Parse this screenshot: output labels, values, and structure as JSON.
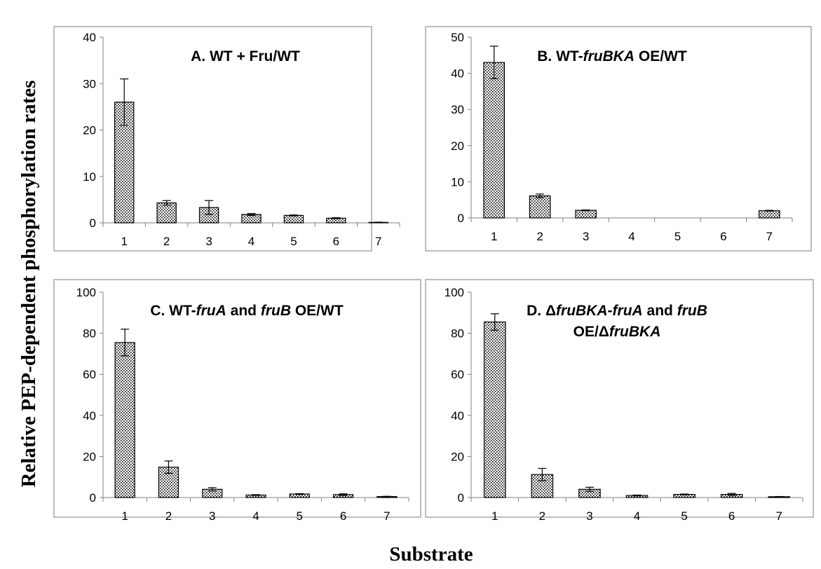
{
  "figure": {
    "ylabel": "Relative PEP-dependent phosphorylation rates",
    "xlabel": "Substrate"
  },
  "chart_data": [
    {
      "type": "bar",
      "title": "A. WT + Fru/WT",
      "title_parts": [
        {
          "t": "A. WT + Fru/WT",
          "i": false
        }
      ],
      "categories": [
        "1",
        "2",
        "3",
        "4",
        "5",
        "6",
        "7"
      ],
      "values": [
        26,
        4.3,
        3.3,
        1.8,
        1.6,
        1.0,
        0.1
      ],
      "errors": [
        5.0,
        0.5,
        1.5,
        0.2,
        0.1,
        0.1,
        0.05
      ],
      "ylim": [
        0,
        40
      ],
      "yticks": [
        0,
        10,
        20,
        30,
        40
      ]
    },
    {
      "type": "bar",
      "title": "B.  WT-fruBKA OE/WT",
      "title_parts": [
        {
          "t": "B.  WT-",
          "i": false
        },
        {
          "t": "fruBKA",
          "i": true
        },
        {
          "t": " OE/WT",
          "i": false
        }
      ],
      "categories": [
        "1",
        "2",
        "3",
        "4",
        "5",
        "6",
        "7"
      ],
      "values": [
        43,
        6.1,
        2.1,
        0,
        0,
        0,
        2.0
      ],
      "errors": [
        4.5,
        0.5,
        0.1,
        0,
        0,
        0,
        0.1
      ],
      "ylim": [
        0,
        50
      ],
      "yticks": [
        0,
        10,
        20,
        30,
        40,
        50
      ]
    },
    {
      "type": "bar",
      "title": "C. WT-fruA and fruB OE/WT",
      "title_parts": [
        {
          "t": "C. WT-",
          "i": false
        },
        {
          "t": "fruA",
          "i": true
        },
        {
          "t": " and ",
          "i": false
        },
        {
          "t": "fruB",
          "i": true
        },
        {
          "t": " OE/WT",
          "i": false
        }
      ],
      "categories": [
        "1",
        "2",
        "3",
        "4",
        "5",
        "6",
        "7"
      ],
      "values": [
        75.5,
        14.8,
        4.0,
        1.2,
        1.7,
        1.4,
        0.5
      ],
      "errors": [
        6.5,
        3.0,
        0.8,
        0.2,
        0.2,
        0.4,
        0.1
      ],
      "ylim": [
        0,
        100
      ],
      "yticks": [
        0,
        20,
        40,
        60,
        80,
        100
      ]
    },
    {
      "type": "bar",
      "title": "D. ΔfruBKA-fruA and fruB OE/ΔfruBKA",
      "title_parts": [
        [
          {
            "t": "D. Δ",
            "i": false
          },
          {
            "t": "fruBKA-fruA",
            "i": true
          },
          {
            "t": " and ",
            "i": false
          },
          {
            "t": "fruB",
            "i": true
          }
        ],
        [
          {
            "t": "OE/Δ",
            "i": false
          },
          {
            "t": "fruBKA",
            "i": true
          }
        ]
      ],
      "categories": [
        "1",
        "2",
        "3",
        "4",
        "5",
        "6",
        "7"
      ],
      "values": [
        85.5,
        11.2,
        4.0,
        1.0,
        1.5,
        1.5,
        0.4
      ],
      "errors": [
        4.0,
        3.0,
        1.0,
        0.2,
        0.2,
        0.5,
        0.1
      ],
      "ylim": [
        0,
        100
      ],
      "yticks": [
        0,
        20,
        40,
        60,
        80,
        100
      ]
    }
  ]
}
